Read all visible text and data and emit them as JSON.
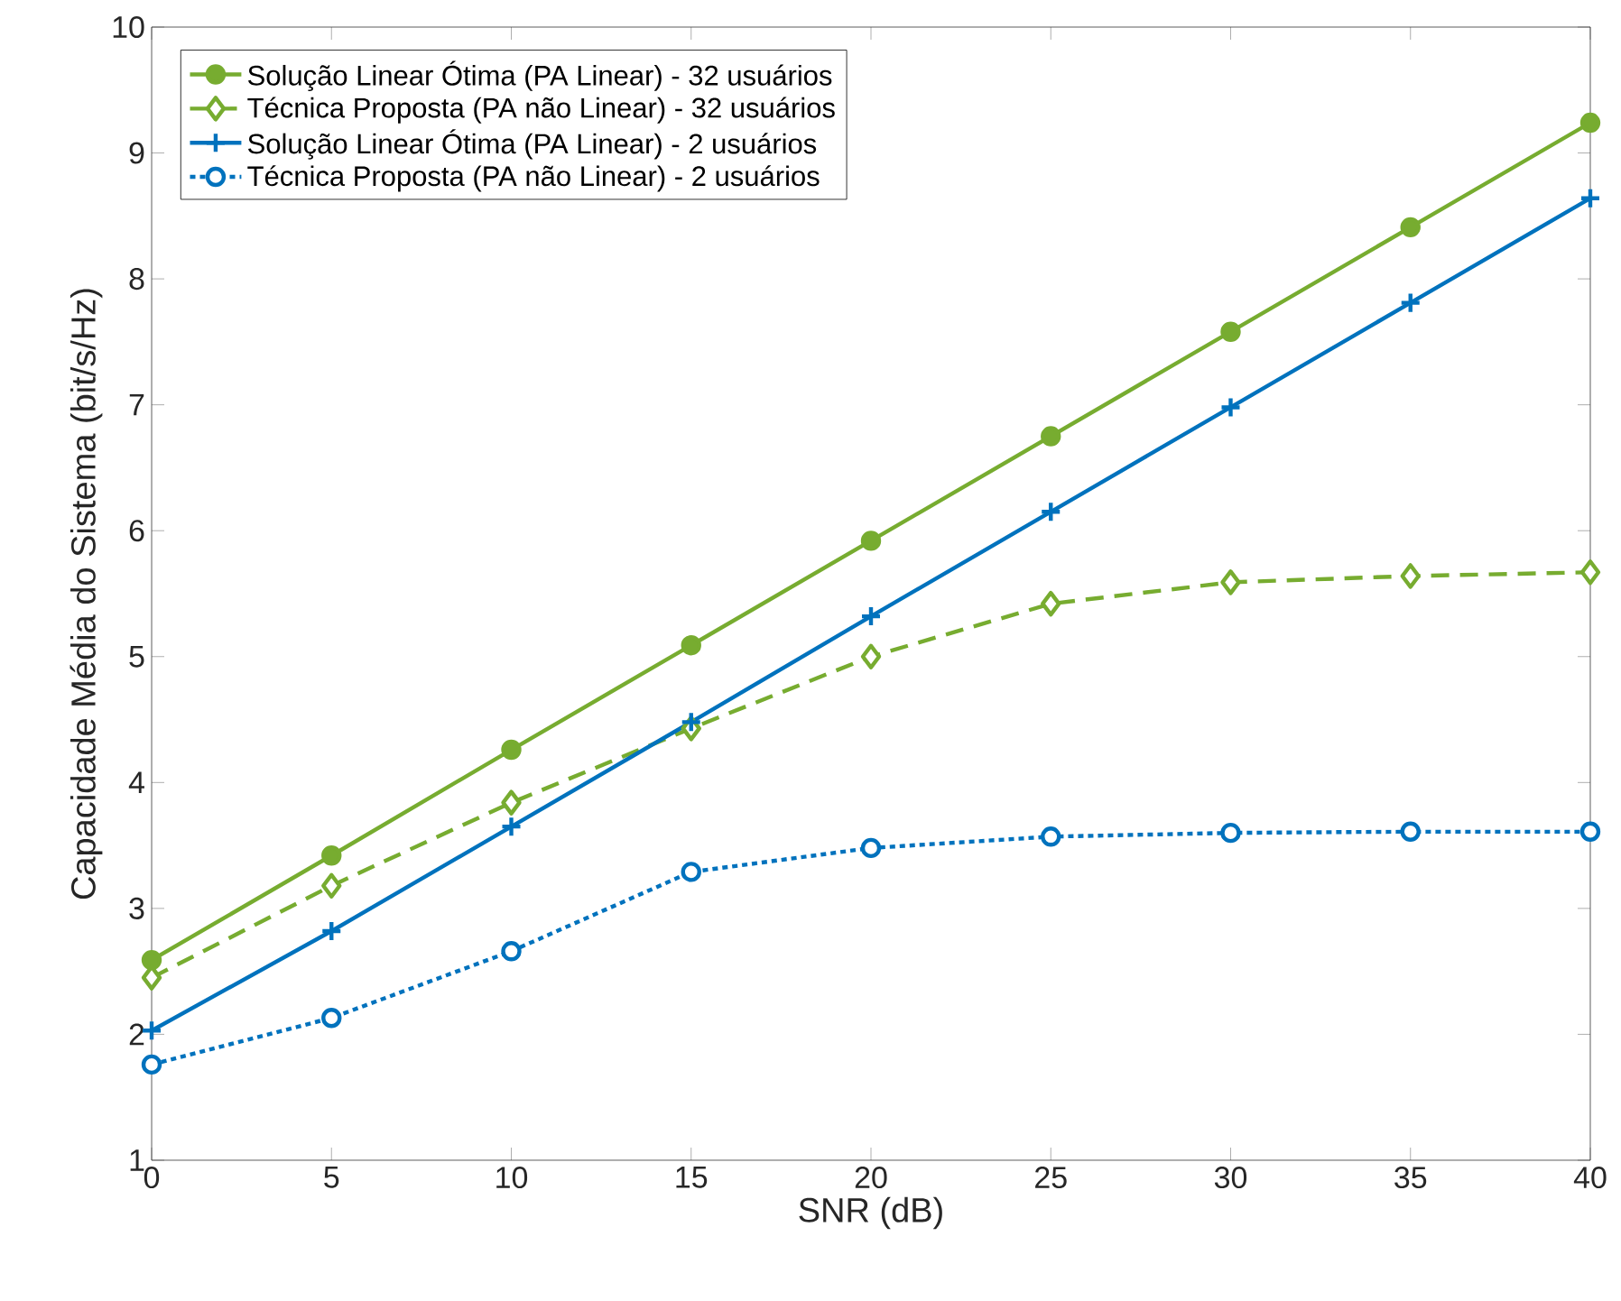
{
  "chart_data": {
    "type": "line",
    "xlabel": "SNR (dB)",
    "ylabel": "Capacidade Média do Sistema (bit/s/Hz)",
    "x": [
      0,
      5,
      10,
      15,
      20,
      25,
      30,
      35,
      40
    ],
    "xlim": [
      0,
      40
    ],
    "xticks": [
      0,
      5,
      10,
      15,
      20,
      25,
      30,
      35,
      40
    ],
    "ylim": [
      1,
      10
    ],
    "yticks": [
      1,
      2,
      3,
      4,
      5,
      6,
      7,
      8,
      9,
      10
    ],
    "legend": "top left",
    "series": [
      {
        "name": "Solução Linear Ótima (PA Linear) - 32 usuários",
        "color": "#77ac30",
        "marker": "circle",
        "line_style": "solid",
        "values": [
          2.59,
          3.42,
          4.26,
          5.09,
          5.92,
          6.75,
          7.58,
          8.41,
          9.24
        ]
      },
      {
        "name": "Técnica Proposta (PA não Linear) - 32 usuários",
        "color": "#77ac30",
        "marker": "diamond",
        "line_style": "dashed",
        "values": [
          2.45,
          3.18,
          3.84,
          4.43,
          5.0,
          5.42,
          5.59,
          5.64,
          5.67
        ]
      },
      {
        "name": "Solução Linear Ótima (PA Linear) - 2 usuários",
        "color": "#0072bd",
        "marker": "cross",
        "line_style": "solid",
        "values": [
          2.03,
          2.82,
          3.65,
          4.48,
          5.32,
          6.15,
          6.98,
          7.81,
          8.64
        ]
      },
      {
        "name": "Técnica Proposta (PA não Linear) - 2 usuários",
        "color": "#0072bd",
        "marker": "circle",
        "line_style": "dotted",
        "values": [
          1.76,
          2.13,
          2.66,
          3.29,
          3.48,
          3.57,
          3.6,
          3.61,
          3.61
        ]
      }
    ]
  }
}
